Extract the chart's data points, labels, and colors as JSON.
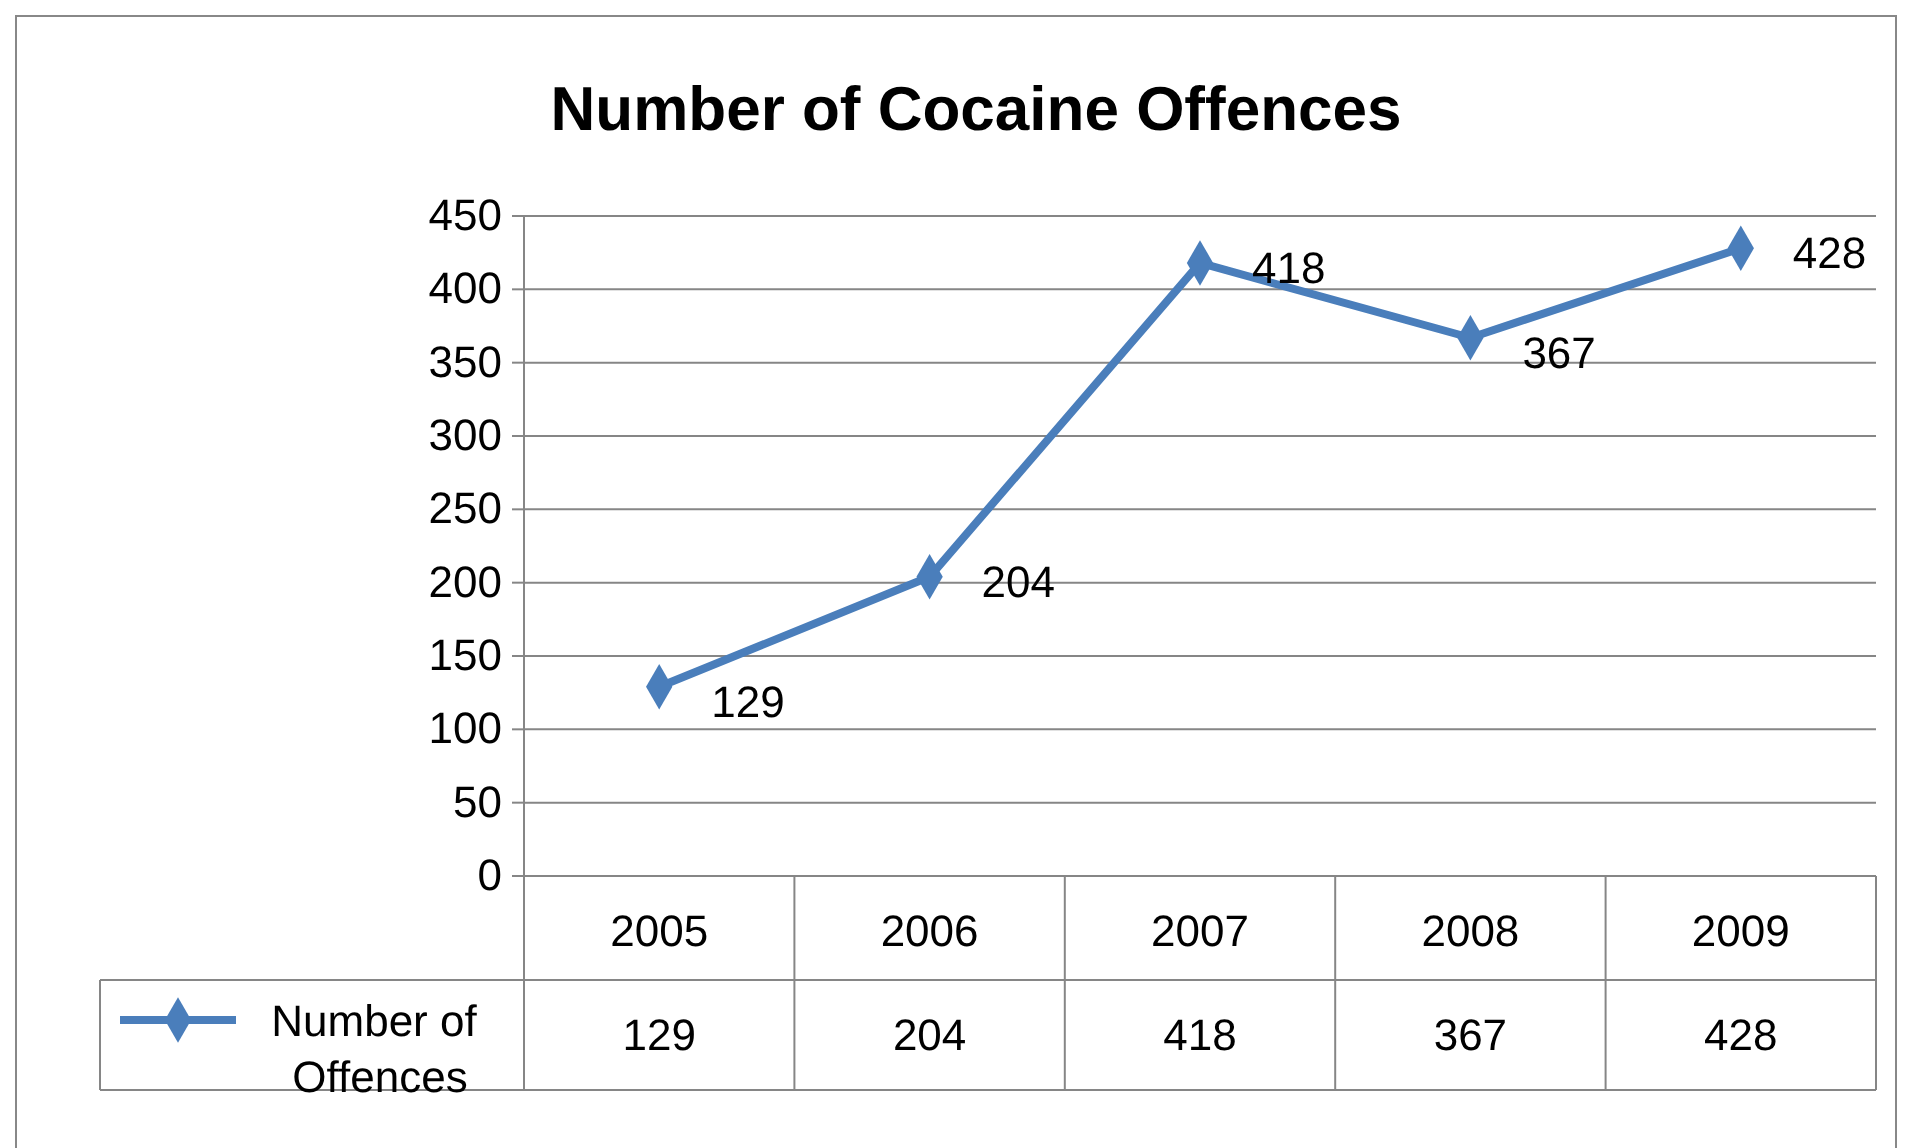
{
  "chart_data": {
    "type": "line",
    "title": "Number of Cocaine Offences",
    "categories": [
      "2005",
      "2006",
      "2007",
      "2008",
      "2009"
    ],
    "series": [
      {
        "name": "Number of Offences",
        "color": "#4a7ebb",
        "values": [
          129,
          204,
          418,
          367,
          428
        ],
        "value_labels": [
          "129",
          "204",
          "418",
          "367",
          "428"
        ]
      }
    ],
    "ylim": [
      0,
      450
    ],
    "yticks": [
      0,
      50,
      100,
      150,
      200,
      250,
      300,
      350,
      400,
      450
    ],
    "annotations": [
      "129",
      "204",
      "418",
      "367",
      "428"
    ],
    "grid": "y",
    "marker": "diamond",
    "line_style": "solid",
    "legend": "bottom"
  }
}
